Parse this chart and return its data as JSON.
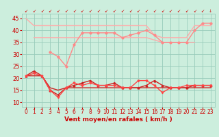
{
  "x": [
    0,
    1,
    2,
    3,
    4,
    5,
    6,
    7,
    8,
    9,
    10,
    11,
    12,
    13,
    14,
    15,
    16,
    17,
    18,
    19,
    20,
    21,
    22,
    23
  ],
  "series": [
    {
      "label": "top_flat",
      "y": [
        45,
        42,
        42,
        42,
        42,
        42,
        42,
        42,
        42,
        42,
        42,
        42,
        42,
        42,
        42,
        42,
        38,
        37,
        37,
        37,
        37,
        42,
        42,
        42
      ],
      "color": "#ffaaaa",
      "marker": null,
      "lw": 1.0
    },
    {
      "label": "mid_flat",
      "y": [
        null,
        37,
        37,
        37,
        37,
        37,
        37,
        37,
        37,
        37,
        37,
        37,
        37,
        37,
        37,
        37,
        36,
        35,
        35,
        35,
        35,
        35,
        null,
        null
      ],
      "color": "#ffaaaa",
      "marker": null,
      "lw": 1.0
    },
    {
      "label": "zigzag_upper",
      "y": [
        null,
        null,
        null,
        31,
        29,
        25,
        34,
        39,
        39,
        39,
        39,
        39,
        37,
        38,
        39,
        40,
        38,
        35,
        35,
        35,
        35,
        40,
        43,
        43
      ],
      "color": "#ff8888",
      "marker": "o",
      "ms": 2.0,
      "lw": 1.0
    },
    {
      "label": "lower_mean",
      "y": [
        21,
        21,
        21,
        16,
        15,
        16,
        16,
        16,
        16,
        16,
        16,
        16,
        16,
        16,
        16,
        16,
        16,
        16,
        16,
        16,
        16,
        16,
        16,
        16
      ],
      "color": "#cc2222",
      "marker": null,
      "lw": 1.0
    },
    {
      "label": "lower_zigzag1",
      "y": [
        21,
        23,
        21,
        15,
        13,
        16,
        17,
        18,
        19,
        17,
        17,
        18,
        16,
        16,
        16,
        17,
        19,
        17,
        16,
        16,
        16,
        17,
        17,
        17
      ],
      "color": "#cc2222",
      "marker": "^",
      "ms": 2.0,
      "lw": 1.0
    },
    {
      "label": "lower_zigzag2",
      "y": [
        21,
        22,
        21,
        15,
        12,
        16,
        18,
        17,
        18,
        17,
        17,
        17,
        16,
        16,
        19,
        19,
        17,
        14,
        16,
        16,
        17,
        17,
        17,
        17
      ],
      "color": "#ff4444",
      "marker": "v",
      "ms": 2.0,
      "lw": 1.0
    }
  ],
  "xlabel": "Vent moyen/en rafales ( km/h )",
  "yticks": [
    10,
    15,
    20,
    25,
    30,
    35,
    40,
    45
  ],
  "ymin": 8,
  "ymax": 47,
  "xticks": [
    0,
    1,
    2,
    3,
    4,
    5,
    6,
    7,
    8,
    9,
    10,
    11,
    12,
    13,
    14,
    15,
    16,
    17,
    18,
    19,
    20,
    21,
    22,
    23
  ],
  "bg_color": "#cceedd",
  "grid_color": "#99ccbb",
  "tick_color": "#cc0000",
  "label_color": "#cc0000",
  "xlabel_fontsize": 6.5,
  "ytick_fontsize": 6,
  "xtick_fontsize": 5.5
}
